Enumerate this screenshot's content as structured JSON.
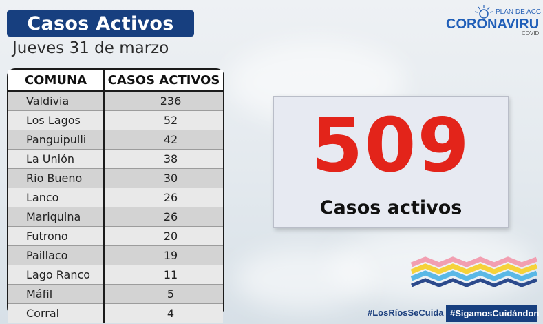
{
  "header": {
    "title": "Casos Activos",
    "date": "Jueves 31 de marzo"
  },
  "table": {
    "columns": [
      "COMUNA",
      "CASOS ACTIVOS"
    ],
    "rows": [
      {
        "comuna": "Valdivia",
        "casos": "236"
      },
      {
        "comuna": "Los Lagos",
        "casos": "52"
      },
      {
        "comuna": "Panguipulli",
        "casos": "42"
      },
      {
        "comuna": "La Unión",
        "casos": "38"
      },
      {
        "comuna": "Rio Bueno",
        "casos": "30"
      },
      {
        "comuna": "Lanco",
        "casos": "26"
      },
      {
        "comuna": "Mariquina",
        "casos": "26"
      },
      {
        "comuna": "Futrono",
        "casos": "20"
      },
      {
        "comuna": "Paillaco",
        "casos": "19"
      },
      {
        "comuna": "Lago Ranco",
        "casos": "11"
      },
      {
        "comuna": "Máfil",
        "casos": "5"
      },
      {
        "comuna": "Corral",
        "casos": "4"
      }
    ]
  },
  "summary": {
    "total": "509",
    "label": "Casos activos",
    "number_color": "#e3241a"
  },
  "logo": {
    "plan": "PLAN DE ACCI",
    "main": "CORONAVIRU",
    "sub": "COVID"
  },
  "hashtags": {
    "region": "#LosRíosSeCuida",
    "campaign": "#SigamosCuidándon"
  },
  "colors": {
    "brand_navy": "#173f7f",
    "accent_red": "#e3241a"
  }
}
